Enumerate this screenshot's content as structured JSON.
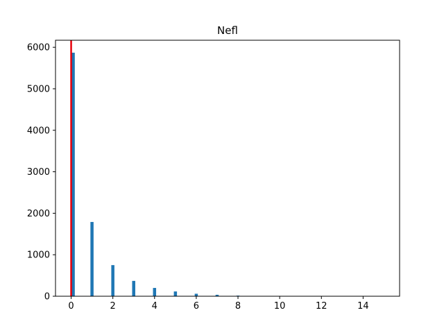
{
  "chart_data": {
    "type": "bar",
    "title": "Nefl",
    "xlabel": "",
    "ylabel": "",
    "xlim": [
      -0.75,
      15.75
    ],
    "ylim": [
      0,
      6170
    ],
    "xticks": [
      0,
      2,
      4,
      6,
      8,
      10,
      12,
      14
    ],
    "yticks": [
      0,
      1000,
      2000,
      3000,
      4000,
      5000,
      6000
    ],
    "grid": false,
    "series": [
      {
        "color": "#1f77b4",
        "bar_width": 0.15,
        "points": [
          {
            "x": 0.1,
            "y": 5870
          },
          {
            "x": 1.0,
            "y": 1790
          },
          {
            "x": 2.0,
            "y": 750
          },
          {
            "x": 3.0,
            "y": 370
          },
          {
            "x": 4.0,
            "y": 200
          },
          {
            "x": 5.0,
            "y": 115
          },
          {
            "x": 6.0,
            "y": 60
          },
          {
            "x": 7.0,
            "y": 35
          },
          {
            "x": 8.0,
            "y": 15
          },
          {
            "x": 9.0,
            "y": 7
          },
          {
            "x": 10.0,
            "y": 4
          },
          {
            "x": 11.0,
            "y": 2
          },
          {
            "x": 12.0,
            "y": 1
          },
          {
            "x": 13.0,
            "y": 1
          },
          {
            "x": 14.0,
            "y": 1
          },
          {
            "x": 15.0,
            "y": 1
          }
        ]
      }
    ],
    "vline": {
      "x": 0,
      "color": "#e8000b"
    }
  }
}
